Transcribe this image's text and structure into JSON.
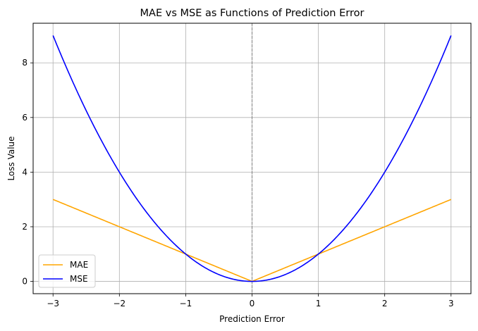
{
  "chart_data": {
    "type": "line",
    "title": "MAE vs MSE as Functions of Prediction Error",
    "xlabel": "Prediction Error",
    "ylabel": "Loss Value",
    "xlim": [
      -3.3,
      3.3
    ],
    "ylim": [
      -0.45,
      9.45
    ],
    "xticks": [
      -3,
      -2,
      -1,
      0,
      1,
      2,
      3
    ],
    "xtick_labels": [
      "−3",
      "−2",
      "−1",
      "0",
      "1",
      "2",
      "3"
    ],
    "yticks": [
      0,
      2,
      4,
      6,
      8
    ],
    "ytick_labels": [
      "0",
      "2",
      "4",
      "6",
      "8"
    ],
    "grid": true,
    "vertical_reference_line": {
      "x": 0,
      "style": "dashed",
      "color": "#808080"
    },
    "legend_position": "lower-left",
    "series": [
      {
        "name": "MAE",
        "color": "#ffa500",
        "function": "abs",
        "x": [
          -3,
          -2,
          -1,
          0,
          1,
          2,
          3
        ],
        "y": [
          3,
          2,
          1,
          0,
          1,
          2,
          3
        ]
      },
      {
        "name": "MSE",
        "color": "#0000ff",
        "function": "square",
        "x": [
          -3,
          -2.5,
          -2,
          -1.5,
          -1,
          -0.5,
          0,
          0.5,
          1,
          1.5,
          2,
          2.5,
          3
        ],
        "y": [
          9,
          6.25,
          4,
          2.25,
          1,
          0.25,
          0,
          0.25,
          1,
          2.25,
          4,
          6.25,
          9
        ]
      }
    ]
  }
}
